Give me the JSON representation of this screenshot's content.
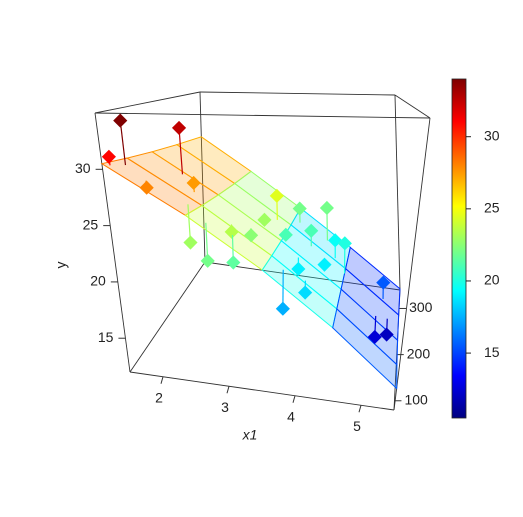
{
  "chart_data": {
    "type": "scatter3d",
    "xlabel": "x1",
    "ylabel": "y",
    "x": [
      1.6,
      1.55,
      2.0,
      1.9,
      2.3,
      2.4,
      2.7,
      2.9,
      3.0,
      3.1,
      3.2,
      3.3,
      3.5,
      3.6,
      3.8,
      3.9,
      4.0,
      4.1,
      4.2,
      4.3,
      3.7,
      5.2,
      5.1,
      5.3,
      4.5
    ],
    "x2": [
      120,
      90,
      200,
      110,
      170,
      120,
      100,
      150,
      120,
      180,
      220,
      260,
      240,
      300,
      200,
      260,
      150,
      310,
      220,
      280,
      130,
      280,
      220,
      240,
      260
    ],
    "values": [
      34.0,
      31.0,
      32.5,
      28.0,
      27.5,
      23.0,
      22.0,
      23.5,
      21.5,
      22.5,
      23.0,
      24.5,
      21.0,
      22.0,
      19.0,
      21.0,
      18.5,
      22.0,
      19.0,
      19.5,
      17.5,
      15.5,
      12.5,
      12.0,
      20.0
    ],
    "fitted": [
      29.84,
      30.23,
      27.68,
      28.64,
      26.6,
      26.48,
      25.34,
      24.2,
      23.96,
      23.18,
      22.52,
      21.86,
      21.14,
      20.36,
      20.12,
      19.34,
      19.58,
      18.2,
      18.32,
      17.54,
      20.96,
      13.76,
      14.54,
      13.58,
      16.82
    ],
    "xlim": [
      1.5,
      5.5
    ],
    "xticks": [
      2,
      3,
      4,
      5
    ],
    "x2lim": [
      80,
      340
    ],
    "x2ticks": [
      100,
      200,
      300
    ],
    "ylim": [
      12,
      35
    ],
    "yticks": [
      15,
      20,
      25,
      30
    ],
    "surface": {
      "x": [
        1.5,
        2.5,
        3.5,
        4.5,
        5.5
      ],
      "x2": [
        80,
        145,
        210,
        275,
        340
      ],
      "z": [
        [
          30.5,
          30.11,
          29.72,
          29.33,
          28.94
        ],
        [
          26.3,
          25.91,
          25.52,
          25.13,
          24.74
        ],
        [
          22.1,
          21.71,
          21.32,
          20.93,
          20.54
        ],
        [
          17.9,
          17.51,
          17.12,
          16.73,
          16.34
        ],
        [
          13.7,
          13.31,
          12.92,
          12.53,
          12.14
        ]
      ]
    },
    "colorbar": {
      "lim": [
        10.5,
        34
      ],
      "ticks": [
        15,
        20,
        25,
        30
      ]
    },
    "colormap": [
      "#00007F",
      "#0000FF",
      "#007FFF",
      "#00FFFF",
      "#7FFF7F",
      "#FFFF00",
      "#FF7F00",
      "#FF0000",
      "#7F0000"
    ]
  }
}
